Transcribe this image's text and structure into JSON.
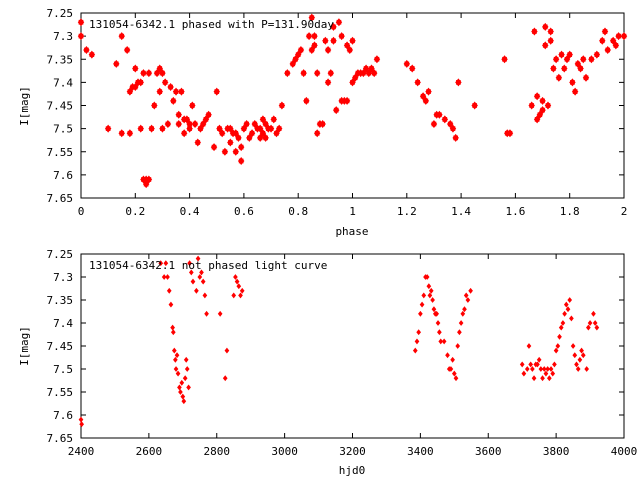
{
  "chart_data": [
    {
      "type": "scatter",
      "title": "131054-6342.1 phased with P=131.90day",
      "xlabel": "phase",
      "ylabel": "I[mag]",
      "xlim": [
        0,
        2
      ],
      "ylim": [
        7.65,
        7.25
      ],
      "y_inverted": true,
      "xticks": [
        0,
        0.2,
        0.4,
        0.6,
        0.8,
        1,
        1.2,
        1.4,
        1.6,
        1.8,
        2
      ],
      "xtick_labels": [
        "0",
        "0.2",
        "0.4",
        "0.6",
        "0.8",
        "1",
        "1.2",
        "1.4",
        "1.6",
        "1.8",
        "2"
      ],
      "yticks": [
        7.25,
        7.3,
        7.35,
        7.4,
        7.45,
        7.5,
        7.55,
        7.6,
        7.65
      ],
      "ytick_labels": [
        "7.25",
        "7.3",
        "7.35",
        "7.4",
        "7.45",
        "7.5",
        "7.55",
        "7.6",
        "7.65"
      ],
      "grid": false,
      "marker_color": "#ff0000",
      "points": [
        [
          0.0,
          7.27
        ],
        [
          0.0,
          7.3
        ],
        [
          0.02,
          7.33
        ],
        [
          0.04,
          7.34
        ],
        [
          0.1,
          7.5
        ],
        [
          0.13,
          7.36
        ],
        [
          0.15,
          7.3
        ],
        [
          0.15,
          7.51
        ],
        [
          0.17,
          7.33
        ],
        [
          0.18,
          7.51
        ],
        [
          0.18,
          7.42
        ],
        [
          0.19,
          7.41
        ],
        [
          0.2,
          7.41
        ],
        [
          0.2,
          7.37
        ],
        [
          0.21,
          7.4
        ],
        [
          0.22,
          7.4
        ],
        [
          0.22,
          7.5
        ],
        [
          0.23,
          7.38
        ],
        [
          0.23,
          7.61
        ],
        [
          0.24,
          7.62
        ],
        [
          0.24,
          7.61
        ],
        [
          0.25,
          7.61
        ],
        [
          0.25,
          7.38
        ],
        [
          0.26,
          7.5
        ],
        [
          0.27,
          7.45
        ],
        [
          0.28,
          7.38
        ],
        [
          0.29,
          7.37
        ],
        [
          0.29,
          7.42
        ],
        [
          0.3,
          7.38
        ],
        [
          0.3,
          7.5
        ],
        [
          0.31,
          7.4
        ],
        [
          0.32,
          7.49
        ],
        [
          0.33,
          7.41
        ],
        [
          0.34,
          7.44
        ],
        [
          0.35,
          7.42
        ],
        [
          0.36,
          7.47
        ],
        [
          0.36,
          7.49
        ],
        [
          0.37,
          7.42
        ],
        [
          0.38,
          7.48
        ],
        [
          0.38,
          7.51
        ],
        [
          0.39,
          7.48
        ],
        [
          0.4,
          7.49
        ],
        [
          0.4,
          7.5
        ],
        [
          0.41,
          7.45
        ],
        [
          0.42,
          7.49
        ],
        [
          0.43,
          7.53
        ],
        [
          0.44,
          7.5
        ],
        [
          0.45,
          7.49
        ],
        [
          0.46,
          7.48
        ],
        [
          0.47,
          7.47
        ],
        [
          0.49,
          7.54
        ],
        [
          0.5,
          7.42
        ],
        [
          0.51,
          7.5
        ],
        [
          0.52,
          7.51
        ],
        [
          0.53,
          7.55
        ],
        [
          0.54,
          7.5
        ],
        [
          0.55,
          7.5
        ],
        [
          0.55,
          7.53
        ],
        [
          0.56,
          7.51
        ],
        [
          0.57,
          7.55
        ],
        [
          0.57,
          7.51
        ],
        [
          0.58,
          7.52
        ],
        [
          0.59,
          7.54
        ],
        [
          0.59,
          7.57
        ],
        [
          0.6,
          7.5
        ],
        [
          0.61,
          7.49
        ],
        [
          0.62,
          7.52
        ],
        [
          0.63,
          7.51
        ],
        [
          0.64,
          7.49
        ],
        [
          0.65,
          7.5
        ],
        [
          0.66,
          7.52
        ],
        [
          0.66,
          7.5
        ],
        [
          0.67,
          7.48
        ],
        [
          0.67,
          7.51
        ],
        [
          0.68,
          7.49
        ],
        [
          0.68,
          7.52
        ],
        [
          0.69,
          7.5
        ],
        [
          0.7,
          7.5
        ],
        [
          0.71,
          7.48
        ],
        [
          0.72,
          7.51
        ],
        [
          0.73,
          7.5
        ],
        [
          0.74,
          7.45
        ],
        [
          0.76,
          7.38
        ],
        [
          0.78,
          7.36
        ],
        [
          0.79,
          7.35
        ],
        [
          0.8,
          7.34
        ],
        [
          0.81,
          7.33
        ],
        [
          0.82,
          7.38
        ],
        [
          0.83,
          7.44
        ],
        [
          0.84,
          7.3
        ],
        [
          0.85,
          7.26
        ],
        [
          0.85,
          7.33
        ],
        [
          0.86,
          7.32
        ],
        [
          0.86,
          7.3
        ],
        [
          0.87,
          7.51
        ],
        [
          0.87,
          7.38
        ],
        [
          0.88,
          7.49
        ],
        [
          0.89,
          7.49
        ],
        [
          0.9,
          7.31
        ],
        [
          0.91,
          7.4
        ],
        [
          0.91,
          7.33
        ],
        [
          0.92,
          7.38
        ],
        [
          0.93,
          7.28
        ],
        [
          0.93,
          7.31
        ],
        [
          0.94,
          7.46
        ],
        [
          0.95,
          7.27
        ],
        [
          0.96,
          7.44
        ],
        [
          0.96,
          7.3
        ],
        [
          0.97,
          7.44
        ],
        [
          0.98,
          7.44
        ],
        [
          0.98,
          7.32
        ],
        [
          0.99,
          7.33
        ],
        [
          1.0,
          7.31
        ],
        [
          1.0,
          7.4
        ],
        [
          1.01,
          7.39
        ],
        [
          1.02,
          7.38
        ],
        [
          1.03,
          7.38
        ],
        [
          1.04,
          7.38
        ],
        [
          1.05,
          7.37
        ],
        [
          1.06,
          7.38
        ],
        [
          1.07,
          7.37
        ],
        [
          1.08,
          7.38
        ],
        [
          1.09,
          7.35
        ],
        [
          1.2,
          7.36
        ],
        [
          1.22,
          7.37
        ],
        [
          1.24,
          7.4
        ],
        [
          1.26,
          7.43
        ],
        [
          1.27,
          7.44
        ],
        [
          1.28,
          7.42
        ],
        [
          1.3,
          7.49
        ],
        [
          1.31,
          7.47
        ],
        [
          1.32,
          7.47
        ],
        [
          1.34,
          7.48
        ],
        [
          1.36,
          7.49
        ],
        [
          1.37,
          7.5
        ],
        [
          1.38,
          7.52
        ],
        [
          1.39,
          7.4
        ],
        [
          1.45,
          7.45
        ],
        [
          1.56,
          7.35
        ],
        [
          1.57,
          7.51
        ],
        [
          1.58,
          7.51
        ],
        [
          1.66,
          7.45
        ],
        [
          1.67,
          7.29
        ],
        [
          1.68,
          7.48
        ],
        [
          1.68,
          7.43
        ],
        [
          1.69,
          7.47
        ],
        [
          1.7,
          7.46
        ],
        [
          1.7,
          7.44
        ],
        [
          1.71,
          7.32
        ],
        [
          1.71,
          7.28
        ],
        [
          1.72,
          7.45
        ],
        [
          1.73,
          7.29
        ],
        [
          1.73,
          7.31
        ],
        [
          1.74,
          7.37
        ],
        [
          1.75,
          7.35
        ],
        [
          1.76,
          7.39
        ],
        [
          1.77,
          7.34
        ],
        [
          1.78,
          7.37
        ],
        [
          1.79,
          7.35
        ],
        [
          1.8,
          7.34
        ],
        [
          1.81,
          7.4
        ],
        [
          1.82,
          7.42
        ],
        [
          1.83,
          7.36
        ],
        [
          1.84,
          7.37
        ],
        [
          1.85,
          7.35
        ],
        [
          1.86,
          7.39
        ],
        [
          1.88,
          7.35
        ],
        [
          1.9,
          7.34
        ],
        [
          1.92,
          7.31
        ],
        [
          1.93,
          7.29
        ],
        [
          1.94,
          7.33
        ],
        [
          1.96,
          7.31
        ],
        [
          1.97,
          7.32
        ],
        [
          1.98,
          7.3
        ],
        [
          2.0,
          7.3
        ]
      ]
    },
    {
      "type": "scatter",
      "title": "131054-6342.1 not phased light curve",
      "xlabel": "hjd0",
      "ylabel": "I[mag]",
      "xlim": [
        2400,
        4000
      ],
      "ylim": [
        7.65,
        7.25
      ],
      "y_inverted": true,
      "xticks": [
        2400,
        2600,
        2800,
        3000,
        3200,
        3400,
        3600,
        3800,
        4000
      ],
      "xtick_labels": [
        "2400",
        "2600",
        "2800",
        "3000",
        "3200",
        "3400",
        "3600",
        "3800",
        "4000"
      ],
      "yticks": [
        7.25,
        7.3,
        7.35,
        7.4,
        7.45,
        7.5,
        7.55,
        7.6,
        7.65
      ],
      "ytick_labels": [
        "7.25",
        "7.3",
        "7.35",
        "7.4",
        "7.45",
        "7.5",
        "7.55",
        "7.6",
        "7.65"
      ],
      "grid": false,
      "marker_color": "#ff0000",
      "points": [
        [
          2400,
          7.61
        ],
        [
          2402,
          7.62
        ],
        [
          2635,
          7.27
        ],
        [
          2645,
          7.3
        ],
        [
          2650,
          7.27
        ],
        [
          2655,
          7.3
        ],
        [
          2660,
          7.33
        ],
        [
          2665,
          7.36
        ],
        [
          2670,
          7.41
        ],
        [
          2672,
          7.42
        ],
        [
          2675,
          7.46
        ],
        [
          2678,
          7.48
        ],
        [
          2680,
          7.5
        ],
        [
          2683,
          7.47
        ],
        [
          2686,
          7.51
        ],
        [
          2690,
          7.54
        ],
        [
          2693,
          7.55
        ],
        [
          2697,
          7.53
        ],
        [
          2700,
          7.56
        ],
        [
          2703,
          7.57
        ],
        [
          2707,
          7.52
        ],
        [
          2710,
          7.48
        ],
        [
          2713,
          7.5
        ],
        [
          2717,
          7.54
        ],
        [
          2720,
          7.27
        ],
        [
          2725,
          7.29
        ],
        [
          2730,
          7.31
        ],
        [
          2740,
          7.33
        ],
        [
          2745,
          7.26
        ],
        [
          2750,
          7.3
        ],
        [
          2755,
          7.29
        ],
        [
          2760,
          7.31
        ],
        [
          2765,
          7.34
        ],
        [
          2770,
          7.38
        ],
        [
          2810,
          7.38
        ],
        [
          2825,
          7.52
        ],
        [
          2830,
          7.46
        ],
        [
          2850,
          7.34
        ],
        [
          2855,
          7.3
        ],
        [
          2860,
          7.31
        ],
        [
          2865,
          7.32
        ],
        [
          2870,
          7.34
        ],
        [
          2875,
          7.33
        ],
        [
          3385,
          7.46
        ],
        [
          3390,
          7.44
        ],
        [
          3395,
          7.42
        ],
        [
          3400,
          7.38
        ],
        [
          3405,
          7.36
        ],
        [
          3410,
          7.34
        ],
        [
          3415,
          7.3
        ],
        [
          3420,
          7.3
        ],
        [
          3425,
          7.32
        ],
        [
          3428,
          7.34
        ],
        [
          3432,
          7.33
        ],
        [
          3436,
          7.35
        ],
        [
          3440,
          7.37
        ],
        [
          3444,
          7.38
        ],
        [
          3448,
          7.38
        ],
        [
          3452,
          7.4
        ],
        [
          3456,
          7.42
        ],
        [
          3460,
          7.44
        ],
        [
          3470,
          7.44
        ],
        [
          3480,
          7.47
        ],
        [
          3485,
          7.5
        ],
        [
          3490,
          7.5
        ],
        [
          3495,
          7.48
        ],
        [
          3500,
          7.51
        ],
        [
          3505,
          7.52
        ],
        [
          3510,
          7.45
        ],
        [
          3515,
          7.42
        ],
        [
          3520,
          7.4
        ],
        [
          3525,
          7.38
        ],
        [
          3530,
          7.37
        ],
        [
          3535,
          7.34
        ],
        [
          3540,
          7.35
        ],
        [
          3548,
          7.33
        ],
        [
          3700,
          7.49
        ],
        [
          3705,
          7.51
        ],
        [
          3715,
          7.5
        ],
        [
          3720,
          7.45
        ],
        [
          3725,
          7.49
        ],
        [
          3730,
          7.5
        ],
        [
          3735,
          7.52
        ],
        [
          3740,
          7.49
        ],
        [
          3745,
          7.49
        ],
        [
          3750,
          7.48
        ],
        [
          3755,
          7.5
        ],
        [
          3760,
          7.52
        ],
        [
          3765,
          7.5
        ],
        [
          3770,
          7.51
        ],
        [
          3775,
          7.5
        ],
        [
          3780,
          7.52
        ],
        [
          3785,
          7.5
        ],
        [
          3790,
          7.51
        ],
        [
          3795,
          7.49
        ],
        [
          3800,
          7.46
        ],
        [
          3805,
          7.45
        ],
        [
          3810,
          7.43
        ],
        [
          3815,
          7.41
        ],
        [
          3820,
          7.4
        ],
        [
          3825,
          7.38
        ],
        [
          3830,
          7.36
        ],
        [
          3835,
          7.37
        ],
        [
          3840,
          7.35
        ],
        [
          3845,
          7.39
        ],
        [
          3850,
          7.45
        ],
        [
          3855,
          7.47
        ],
        [
          3860,
          7.49
        ],
        [
          3865,
          7.5
        ],
        [
          3870,
          7.48
        ],
        [
          3875,
          7.46
        ],
        [
          3880,
          7.47
        ],
        [
          3890,
          7.5
        ],
        [
          3895,
          7.41
        ],
        [
          3900,
          7.4
        ],
        [
          3910,
          7.38
        ],
        [
          3915,
          7.4
        ],
        [
          3920,
          7.41
        ]
      ]
    }
  ]
}
